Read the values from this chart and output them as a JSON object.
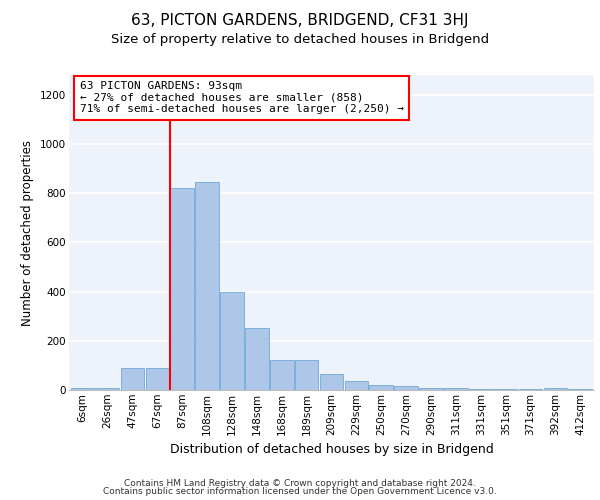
{
  "title": "63, PICTON GARDENS, BRIDGEND, CF31 3HJ",
  "subtitle": "Size of property relative to detached houses in Bridgend",
  "xlabel": "Distribution of detached houses by size in Bridgend",
  "ylabel": "Number of detached properties",
  "categories": [
    "6sqm",
    "26sqm",
    "47sqm",
    "67sqm",
    "87sqm",
    "108sqm",
    "128sqm",
    "148sqm",
    "168sqm",
    "189sqm",
    "209sqm",
    "229sqm",
    "250sqm",
    "270sqm",
    "290sqm",
    "311sqm",
    "331sqm",
    "351sqm",
    "371sqm",
    "392sqm",
    "412sqm"
  ],
  "values": [
    10,
    10,
    90,
    90,
    820,
    845,
    400,
    250,
    120,
    120,
    65,
    35,
    20,
    15,
    10,
    10,
    5,
    5,
    5,
    10,
    5
  ],
  "bar_color": "#aec6e8",
  "bar_edge_color": "#5a9fd4",
  "vline_color": "red",
  "vline_index": 4,
  "annotation_line1": "63 PICTON GARDENS: 93sqm",
  "annotation_line2": "← 27% of detached houses are smaller (858)",
  "annotation_line3": "71% of semi-detached houses are larger (2,250) →",
  "annotation_box_color": "white",
  "annotation_box_edge_color": "red",
  "ylim": [
    0,
    1280
  ],
  "yticks": [
    0,
    200,
    400,
    600,
    800,
    1000,
    1200
  ],
  "background_color": "#eef3fb",
  "grid_color": "white",
  "footer_line1": "Contains HM Land Registry data © Crown copyright and database right 2024.",
  "footer_line2": "Contains public sector information licensed under the Open Government Licence v3.0.",
  "title_fontsize": 11,
  "subtitle_fontsize": 9.5,
  "xlabel_fontsize": 9,
  "ylabel_fontsize": 8.5,
  "tick_fontsize": 7.5,
  "annotation_fontsize": 8,
  "footer_fontsize": 6.5
}
